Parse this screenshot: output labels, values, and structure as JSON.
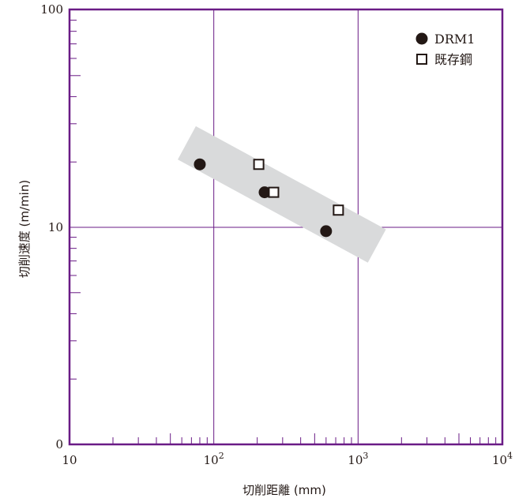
{
  "chart_data": {
    "type": "scatter",
    "xlabel": "切削距離 (mm)",
    "ylabel": "切削速度 (m/min)",
    "x_scale": "log",
    "y_scale": "log",
    "xlim": [
      10,
      10000
    ],
    "y_tick_labels": [
      "0",
      "10",
      "100"
    ],
    "x_tick_labels": [
      {
        "base": "10",
        "exp": ""
      },
      {
        "base": "10",
        "exp": "2"
      },
      {
        "base": "10",
        "exp": "3"
      },
      {
        "base": "10",
        "exp": "4"
      }
    ],
    "grid": true,
    "legend_position": "top-right",
    "colors": {
      "frame": "#6a1b86",
      "grid": "#6a1b86",
      "band": "#d9dadb",
      "marker": "#231815"
    },
    "series": [
      {
        "name": "DRM1",
        "marker": "filled-circle",
        "points": [
          {
            "x": 80,
            "y": 19.5
          },
          {
            "x": 225,
            "y": 14.5
          },
          {
            "x": 600,
            "y": 9.6
          }
        ]
      },
      {
        "name": "既存鋼",
        "marker": "open-square",
        "points": [
          {
            "x": 205,
            "y": 19.5
          },
          {
            "x": 260,
            "y": 14.5
          },
          {
            "x": 730,
            "y": 12.0
          }
        ]
      }
    ],
    "trend_band": [
      {
        "x": 65,
        "y": 24.5
      },
      {
        "x": 1350,
        "y": 8.2
      }
    ]
  }
}
